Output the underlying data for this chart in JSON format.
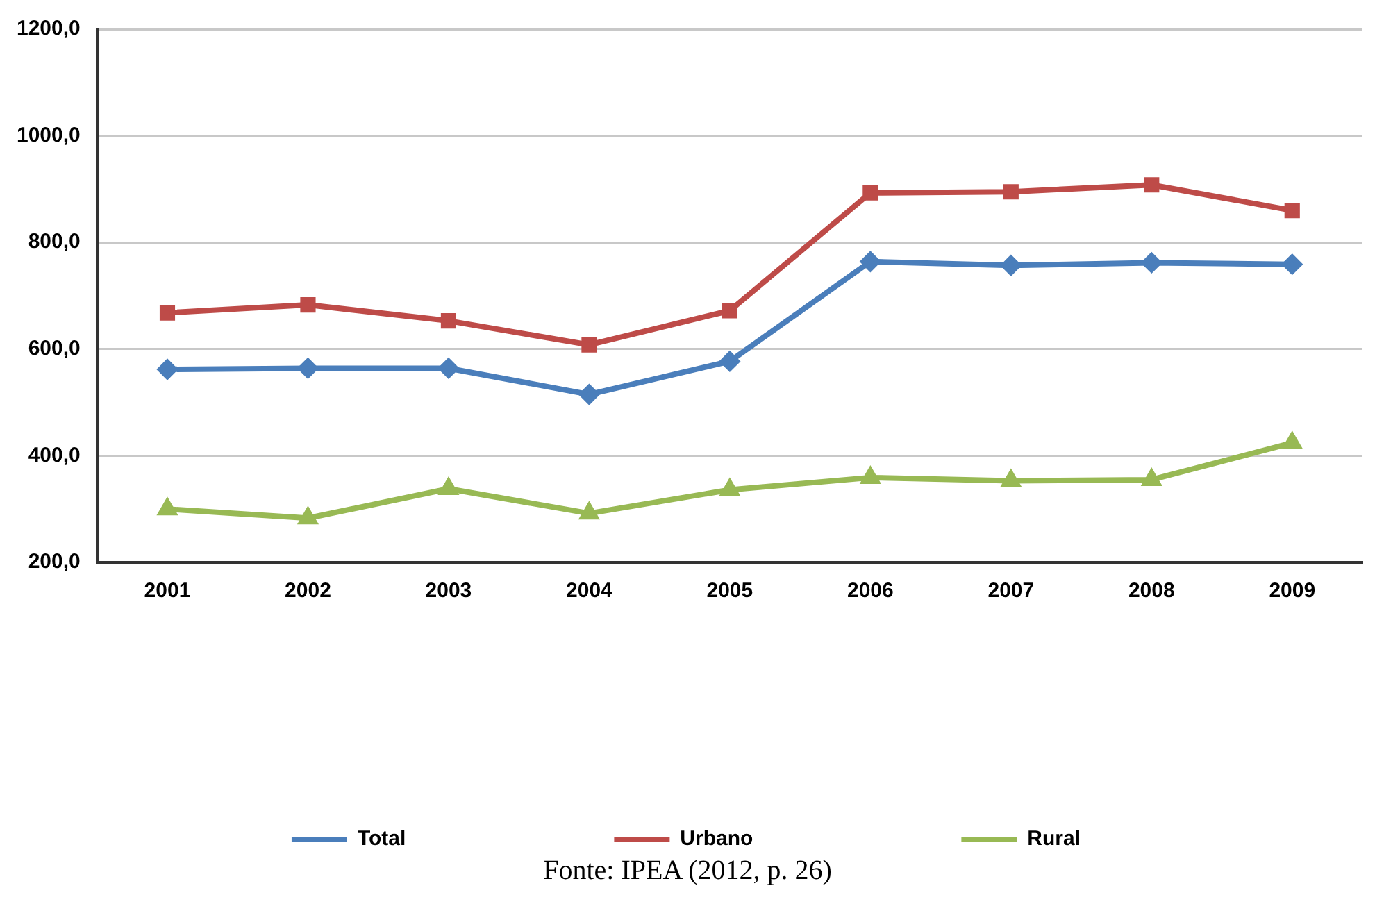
{
  "chart_data": {
    "type": "line",
    "categories": [
      "2001",
      "2002",
      "2003",
      "2004",
      "2005",
      "2006",
      "2007",
      "2008",
      "2009"
    ],
    "series": [
      {
        "name": "Total",
        "color": "#4a7ebb",
        "marker": "diamond",
        "values": [
          562,
          564,
          564,
          515,
          577,
          764,
          757,
          762,
          759
        ]
      },
      {
        "name": "Urbano",
        "color": "#be4b48",
        "marker": "square",
        "values": [
          668,
          683,
          653,
          608,
          672,
          893,
          895,
          908,
          860
        ]
      },
      {
        "name": "Rural",
        "color": "#98b954",
        "marker": "triangle",
        "values": [
          300,
          283,
          338,
          292,
          336,
          359,
          353,
          355,
          424
        ]
      }
    ],
    "ylim": [
      200,
      1200
    ],
    "yticks": [
      {
        "value": 200,
        "label": "200,0"
      },
      {
        "value": 400,
        "label": "400,0"
      },
      {
        "value": 600,
        "label": "600,0"
      },
      {
        "value": 800,
        "label": "800,0"
      },
      {
        "value": 1000,
        "label": "1000,0"
      },
      {
        "value": 1200,
        "label": "1200,0"
      }
    ],
    "grid": "y",
    "legend": "bottom",
    "line_style": "solid",
    "annotations": [
      "Fonte: IPEA (2012, p. 26)"
    ]
  }
}
